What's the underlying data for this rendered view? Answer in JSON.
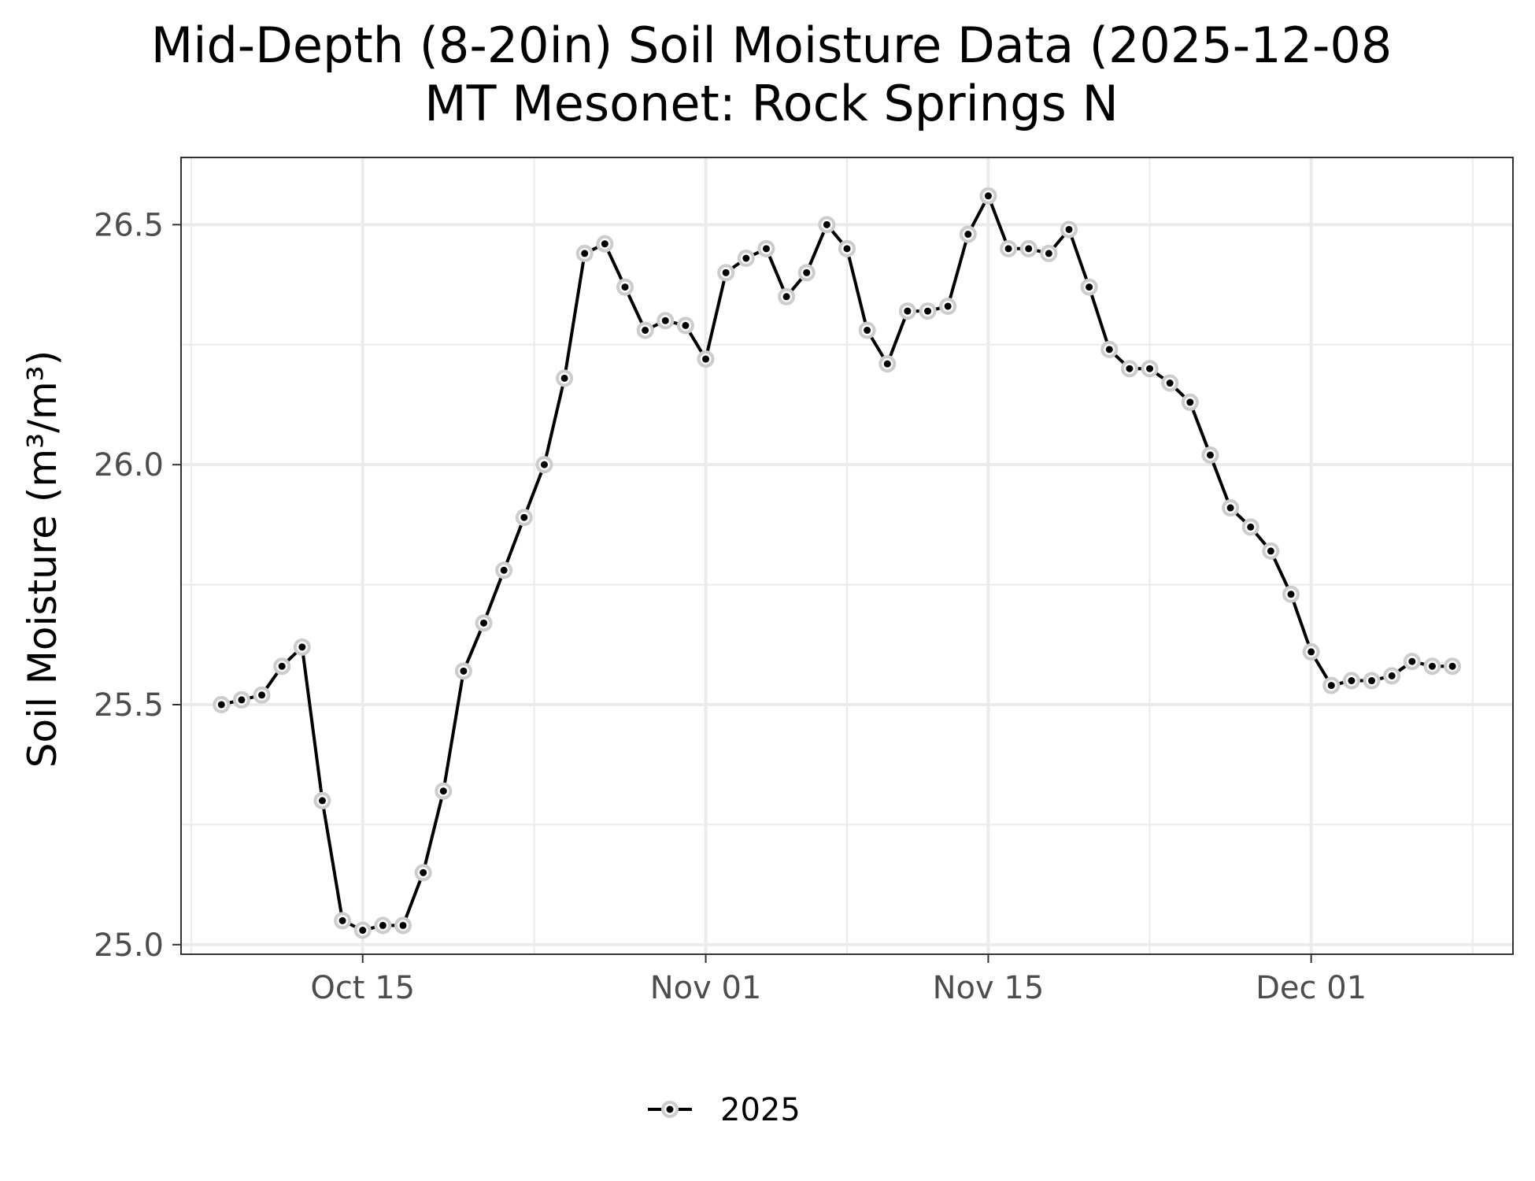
{
  "chart_data": {
    "type": "line",
    "title": "Mid-Depth (8-20in) Soil Moisture Data (2025-12-08",
    "subtitle": "MT Mesonet: Rock Springs N",
    "xlabel": "",
    "ylabel": "Soil Moisture (m³/m³)",
    "x_type": "date",
    "xlim": [
      "2025-10-06",
      "2025-12-11"
    ],
    "ylim": [
      24.98,
      26.64
    ],
    "x_ticks": [
      "2025-10-15",
      "2025-11-01",
      "2025-11-15",
      "2025-12-01"
    ],
    "x_tick_labels": [
      "Oct 15",
      "Nov 01",
      "Nov 15",
      "Dec 01"
    ],
    "y_ticks": [
      25.0,
      25.5,
      26.0,
      26.5
    ],
    "y_tick_labels": [
      "25.0",
      "25.5",
      "26.0",
      "26.5"
    ],
    "grid": true,
    "legend": {
      "position": "bottom",
      "entries": [
        "2025"
      ]
    },
    "series": [
      {
        "name": "2025",
        "color": "#000000",
        "marker_halo_color": "#cccccc",
        "x": [
          "2025-10-08",
          "2025-10-09",
          "2025-10-10",
          "2025-10-11",
          "2025-10-12",
          "2025-10-13",
          "2025-10-14",
          "2025-10-15",
          "2025-10-16",
          "2025-10-17",
          "2025-10-18",
          "2025-10-19",
          "2025-10-20",
          "2025-10-21",
          "2025-10-22",
          "2025-10-23",
          "2025-10-24",
          "2025-10-25",
          "2025-10-26",
          "2025-10-27",
          "2025-10-28",
          "2025-10-29",
          "2025-10-30",
          "2025-10-31",
          "2025-11-01",
          "2025-11-02",
          "2025-11-03",
          "2025-11-04",
          "2025-11-05",
          "2025-11-06",
          "2025-11-07",
          "2025-11-08",
          "2025-11-09",
          "2025-11-10",
          "2025-11-11",
          "2025-11-12",
          "2025-11-13",
          "2025-11-14",
          "2025-11-15",
          "2025-11-16",
          "2025-11-17",
          "2025-11-18",
          "2025-11-19",
          "2025-11-20",
          "2025-11-21",
          "2025-11-22",
          "2025-11-23",
          "2025-11-24",
          "2025-11-25",
          "2025-11-26",
          "2025-11-27",
          "2025-11-28",
          "2025-11-29",
          "2025-11-30",
          "2025-12-01",
          "2025-12-02",
          "2025-12-03",
          "2025-12-04",
          "2025-12-05",
          "2025-12-06",
          "2025-12-07",
          "2025-12-08"
        ],
        "values": [
          25.5,
          25.51,
          25.52,
          25.58,
          25.62,
          25.3,
          25.05,
          25.03,
          25.04,
          25.04,
          25.15,
          25.32,
          25.57,
          25.67,
          25.78,
          25.89,
          26.0,
          26.18,
          26.44,
          26.46,
          26.37,
          26.28,
          26.3,
          26.29,
          26.22,
          26.4,
          26.43,
          26.45,
          26.35,
          26.4,
          26.5,
          26.45,
          26.28,
          26.21,
          26.32,
          26.32,
          26.33,
          26.48,
          26.56,
          26.45,
          26.45,
          26.44,
          26.49,
          26.37,
          26.24,
          26.2,
          26.2,
          26.17,
          26.13,
          26.02,
          25.91,
          25.87,
          25.82,
          25.73,
          25.61,
          25.54,
          25.55,
          25.55,
          25.56,
          25.59,
          25.58,
          25.58
        ]
      }
    ]
  }
}
